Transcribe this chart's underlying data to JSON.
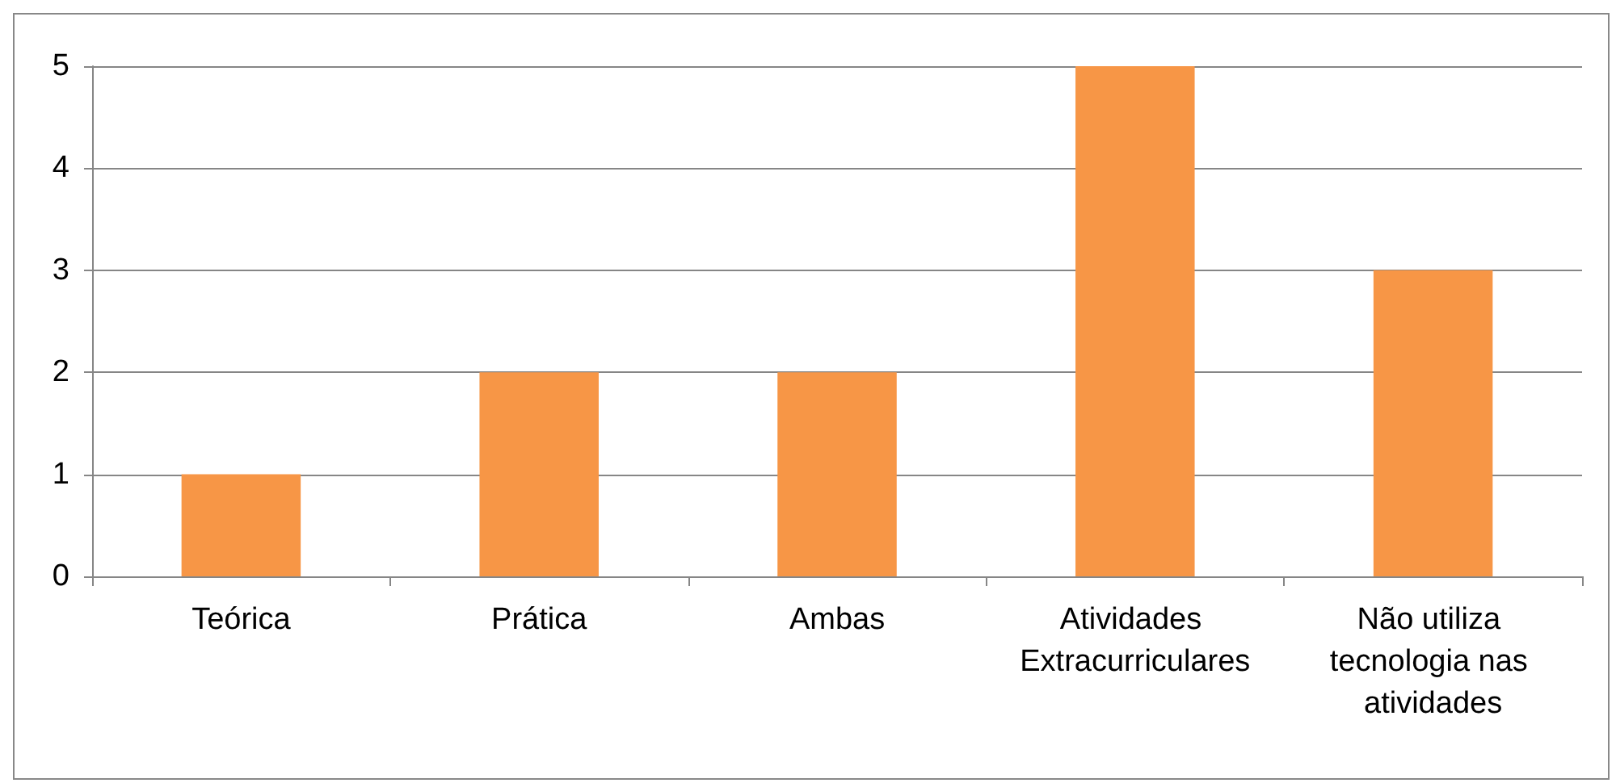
{
  "chart_data": {
    "type": "bar",
    "categories": [
      "Teórica",
      "Prática",
      "Ambas",
      "Atividades Extracurriculares",
      "Não utiliza tecnologia nas atividades"
    ],
    "values": [
      1,
      2,
      2,
      5,
      3
    ],
    "color": "#f79646",
    "ylim": [
      0,
      5
    ],
    "yticks": [
      0,
      1,
      2,
      3,
      4,
      5
    ],
    "grid": "y"
  }
}
